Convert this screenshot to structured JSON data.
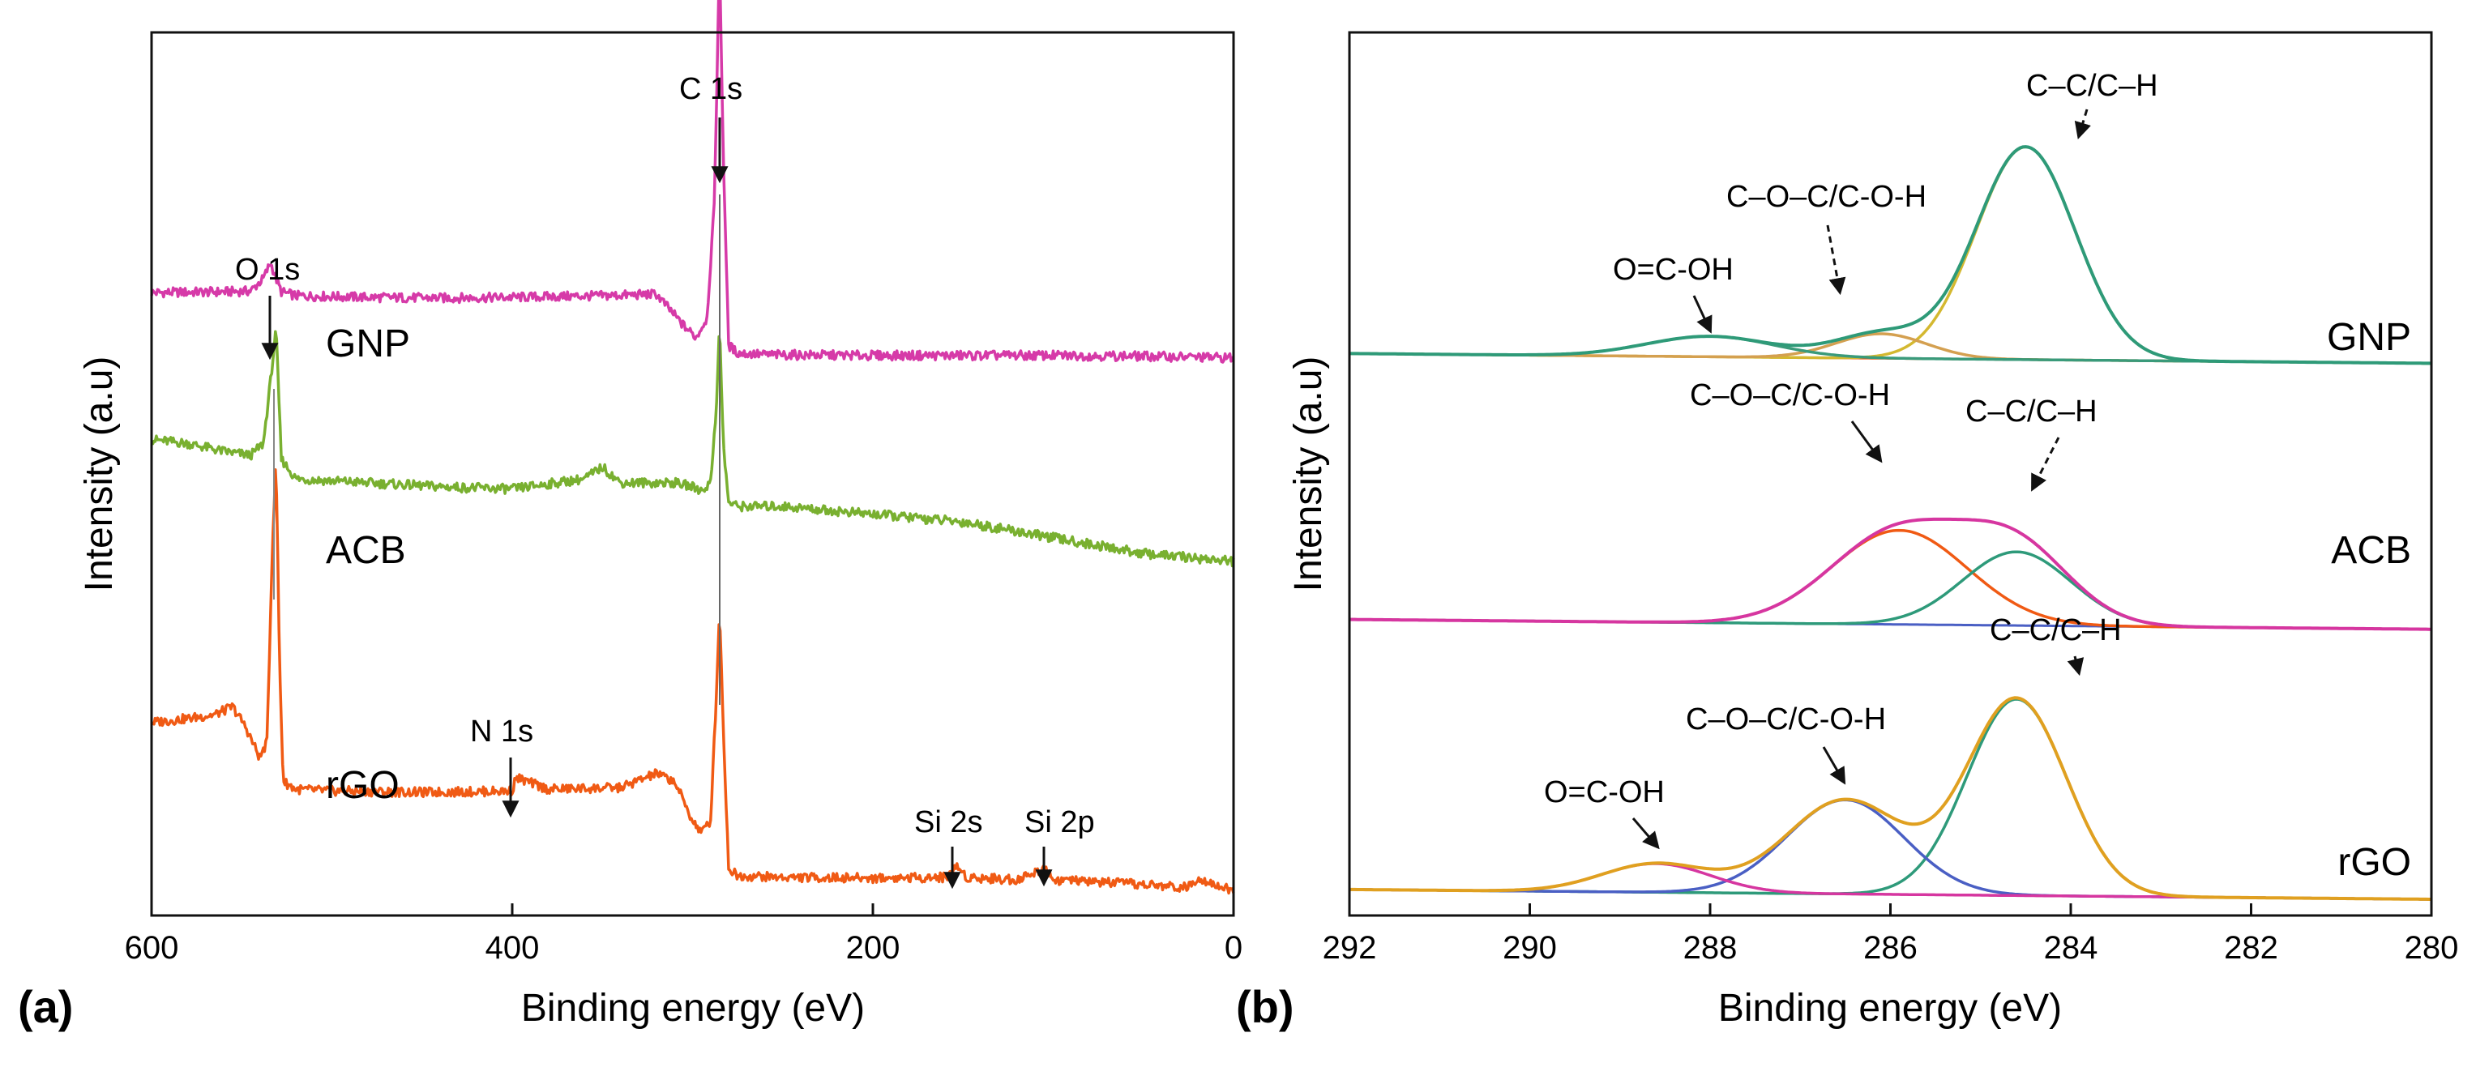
{
  "chart_data": [
    {
      "panel": "(a)",
      "type": "line",
      "title": "",
      "xlabel": "Binding energy (eV)",
      "ylabel": "Intensity (a.u)",
      "xlim": [
        600,
        0
      ],
      "x_reversed": true,
      "xticks": [
        600,
        400,
        200,
        0
      ],
      "yticks": [],
      "grid": false,
      "series": [
        {
          "name": "GNP",
          "color": "#d63aa8",
          "x": [
            600,
            560,
            545,
            538,
            534,
            531,
            528,
            520,
            480,
            440,
            400,
            350,
            320,
            305,
            298,
            292,
            288,
            285,
            283,
            280,
            275,
            260,
            200,
            150,
            100,
            50,
            0
          ],
          "y": [
            0.772,
            0.773,
            0.774,
            0.79,
            0.81,
            0.79,
            0.773,
            0.768,
            0.766,
            0.765,
            0.766,
            0.768,
            0.77,
            0.73,
            0.715,
            0.74,
            0.88,
            1.2,
            0.95,
            0.705,
            0.695,
            0.693,
            0.692,
            0.692,
            0.692,
            0.691,
            0.689
          ]
        },
        {
          "name": "ACB",
          "color": "#79b030",
          "x": [
            600,
            580,
            560,
            545,
            538,
            534,
            531,
            528,
            520,
            480,
            440,
            400,
            360,
            350,
            340,
            310,
            300,
            295,
            290,
            287,
            285,
            283,
            280,
            275,
            250,
            200,
            150,
            100,
            50,
            0
          ],
          "y": [
            0.585,
            0.58,
            0.57,
            0.565,
            0.58,
            0.66,
            0.725,
            0.56,
            0.535,
            0.53,
            0.525,
            0.522,
            0.535,
            0.55,
            0.53,
            0.53,
            0.525,
            0.52,
            0.53,
            0.62,
            0.73,
            0.58,
            0.505,
            0.5,
            0.5,
            0.49,
            0.48,
            0.46,
            0.44,
            0.43
          ]
        },
        {
          "name": "rGO",
          "color": "#f05a14",
          "x": [
            600,
            580,
            565,
            555,
            548,
            540,
            536,
            533,
            531,
            529,
            527,
            520,
            500,
            450,
            420,
            400,
            398,
            380,
            340,
            320,
            310,
            300,
            295,
            290,
            287,
            285,
            283,
            280,
            275,
            250,
            200,
            160,
            153,
            148,
            120,
            104,
            100,
            60,
            25,
            20,
            0
          ],
          "y": [
            0.225,
            0.23,
            0.235,
            0.245,
            0.22,
            0.18,
            0.2,
            0.45,
            0.56,
            0.3,
            0.15,
            0.14,
            0.138,
            0.136,
            0.137,
            0.138,
            0.155,
            0.14,
            0.142,
            0.16,
            0.15,
            0.1,
            0.085,
            0.1,
            0.25,
            0.37,
            0.22,
            0.04,
            0.03,
            0.028,
            0.027,
            0.028,
            0.042,
            0.028,
            0.025,
            0.04,
            0.025,
            0.02,
            0.015,
            0.028,
            0.01
          ]
        }
      ],
      "sample_labels": [
        "GNP",
        "ACB",
        "rGO"
      ],
      "annotations": [
        "O 1s",
        "C 1s",
        "N 1s",
        "Si 2s",
        "Si 2p"
      ]
    },
    {
      "panel": "(b)",
      "type": "line",
      "title": "",
      "xlabel": "Binding energy (eV)",
      "ylabel": "Intensity (a.u)",
      "xlim": [
        292,
        280
      ],
      "x_reversed": true,
      "xticks": [
        292,
        290,
        288,
        286,
        284,
        282,
        280
      ],
      "yticks": [],
      "grid": false,
      "sample_labels": [
        "GNP",
        "ACB",
        "rGO"
      ],
      "annotations": [
        {
          "sample": "GNP",
          "labels": [
            "C–C/C–H",
            "C–O–C/C-O-H",
            "O=C-OH"
          ]
        },
        {
          "sample": "ACB",
          "labels": [
            "C–O–C/C-O-H",
            "C–C/C–H"
          ]
        },
        {
          "sample": "rGO",
          "labels": [
            "C–C/C–H",
            "C–O–C/C-O-H",
            "O=C-OH"
          ]
        }
      ],
      "components": [
        {
          "sample": "GNP",
          "name": "C–C/C–H",
          "center": 284.5,
          "height": 0.26,
          "width": 0.55,
          "color": "#d4b830"
        },
        {
          "sample": "GNP",
          "name": "C–O–C/C-O-H",
          "center": 286.1,
          "height": 0.03,
          "width": 0.5,
          "color": "#d4a050"
        },
        {
          "sample": "GNP",
          "name": "O=C-OH",
          "center": 288.0,
          "height": 0.025,
          "width": 0.7,
          "color": "#3a9a7a"
        },
        {
          "sample": "GNP",
          "name": "envelope",
          "center": 0,
          "height": 0,
          "width": 0,
          "color": "#2e9a78"
        },
        {
          "sample": "ACB",
          "name": "C–O–C/C-O-H",
          "center": 285.9,
          "height": 0.115,
          "width": 0.75,
          "color": "#f05a14"
        },
        {
          "sample": "ACB",
          "name": "C–C/C–H",
          "center": 284.6,
          "height": 0.09,
          "width": 0.6,
          "color": "#2e9a7a"
        },
        {
          "sample": "ACB",
          "name": "envelope",
          "center": 0,
          "height": 0,
          "width": 0,
          "color": "#d636a0"
        },
        {
          "sample": "rGO",
          "name": "C–C/C–H",
          "center": 284.6,
          "height": 0.24,
          "width": 0.55,
          "color": "#2e9a7a"
        },
        {
          "sample": "rGO",
          "name": "C–O–C/C-O-H",
          "center": 286.5,
          "height": 0.115,
          "width": 0.65,
          "color": "#4a5fc4"
        },
        {
          "sample": "rGO",
          "name": "O=C-OH",
          "center": 288.6,
          "height": 0.035,
          "width": 0.6,
          "color": "#d636a0"
        },
        {
          "sample": "rGO",
          "name": "envelope",
          "center": 0,
          "height": 0,
          "width": 0,
          "color": "#e0a020"
        }
      ],
      "baselines": [
        {
          "sample": "GNP",
          "value": 0.655,
          "color": "#f05a14"
        },
        {
          "sample": "ACB",
          "value": 0.33,
          "color": "#4a5fc4"
        },
        {
          "sample": "rGO",
          "value": 0.0,
          "color": "#7ab030"
        }
      ]
    }
  ],
  "text": {
    "panel_a_label": "(a)",
    "panel_b_label": "(b)",
    "a_xlabel": "Binding energy (eV)",
    "b_xlabel": "Binding energy (eV)",
    "a_ylabel": "Intensity (a.u)",
    "b_ylabel": "Intensity (a.u)",
    "a_gnp": "GNP",
    "a_acb": "ACB",
    "a_rgo": "rGO",
    "b_gnp": "GNP",
    "b_acb": "ACB",
    "b_rgo": "rGO",
    "a_o1s": "O 1s",
    "a_c1s": "C 1s",
    "a_n1s": "N 1s",
    "a_si2s": "Si 2s",
    "a_si2p": "Si 2p",
    "b_gnp_cc": "C–C/C–H",
    "b_gnp_coc": "C–O–C/C-O-H",
    "b_gnp_oco": "O=C-OH",
    "b_acb_coc": "C–O–C/C-O-H",
    "b_acb_cc": "C–C/C–H",
    "b_rgo_cc": "C–C/C–H",
    "b_rgo_coc": "C–O–C/C-O-H",
    "b_rgo_oco": "O=C-OH"
  }
}
